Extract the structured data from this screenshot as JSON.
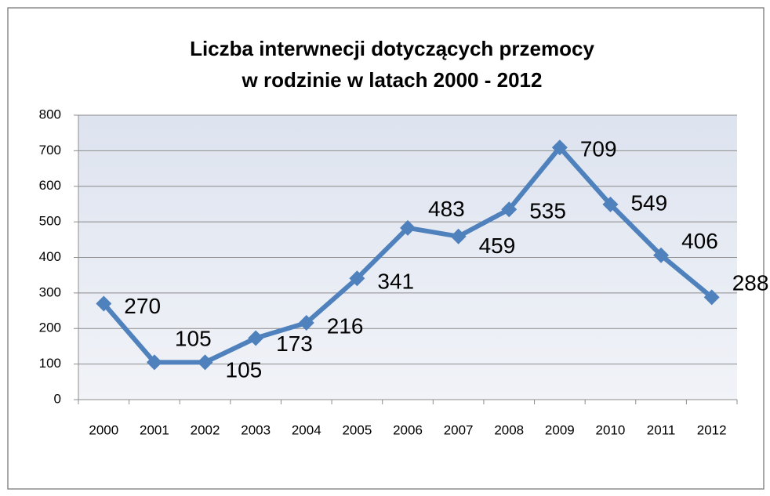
{
  "chart_data": {
    "type": "line",
    "title": [
      "Liczba interwnecji dotyczących przemocy",
      "w rodzinie w latach 2000 - 2012"
    ],
    "categories": [
      "2000",
      "2001",
      "2002",
      "2003",
      "2004",
      "2005",
      "2006",
      "2007",
      "2008",
      "2009",
      "2010",
      "2011",
      "2012"
    ],
    "series": [
      {
        "name": "Liczba interwencji",
        "color": "#4f81bd",
        "values": [
          270,
          105,
          105,
          173,
          216,
          341,
          483,
          459,
          535,
          709,
          549,
          406,
          288
        ]
      }
    ],
    "ylim": [
      0,
      800
    ],
    "yticks": [
      0,
      100,
      200,
      300,
      400,
      500,
      600,
      700,
      800
    ],
    "grid": true
  }
}
